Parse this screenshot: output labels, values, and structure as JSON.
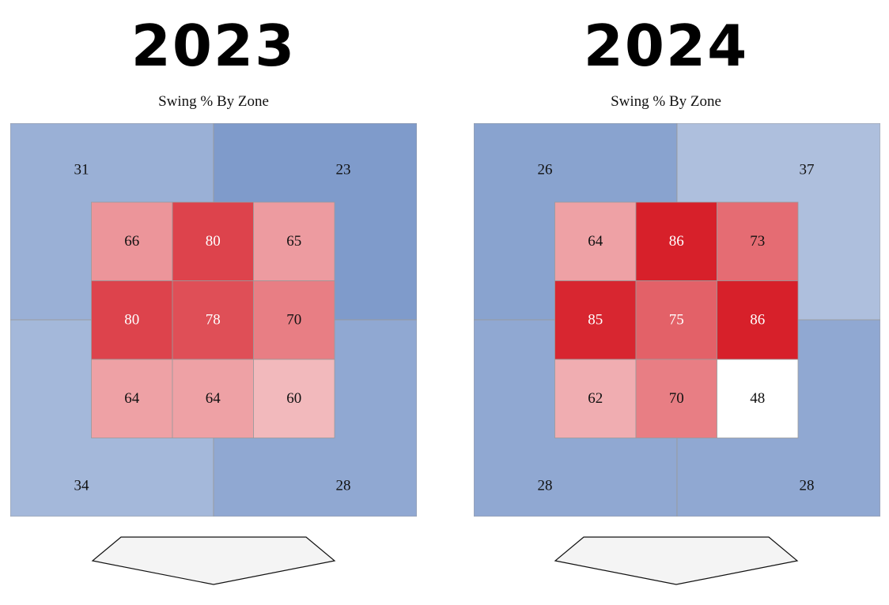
{
  "chart_data": [
    {
      "type": "heatmap",
      "header": "2023",
      "title": "Swing % By Zone",
      "outer": {
        "top_left": 31,
        "top_right": 23,
        "bottom_left": 34,
        "bottom_right": 28
      },
      "grid": [
        [
          66,
          80,
          65
        ],
        [
          80,
          78,
          70
        ],
        [
          64,
          64,
          60
        ]
      ]
    },
    {
      "type": "heatmap",
      "header": "2024",
      "title": "Swing % By Zone",
      "outer": {
        "top_left": 26,
        "top_right": 37,
        "bottom_left": 28,
        "bottom_right": 28
      },
      "grid": [
        [
          64,
          86,
          73
        ],
        [
          85,
          75,
          86
        ],
        [
          62,
          70,
          48
        ]
      ]
    }
  ],
  "colors": {
    "low": "#b2c3e0",
    "high": "#d7202a",
    "neutral": "#ffffff",
    "border": "#9a9a9a",
    "plate_fill": "#f4f4f4"
  }
}
